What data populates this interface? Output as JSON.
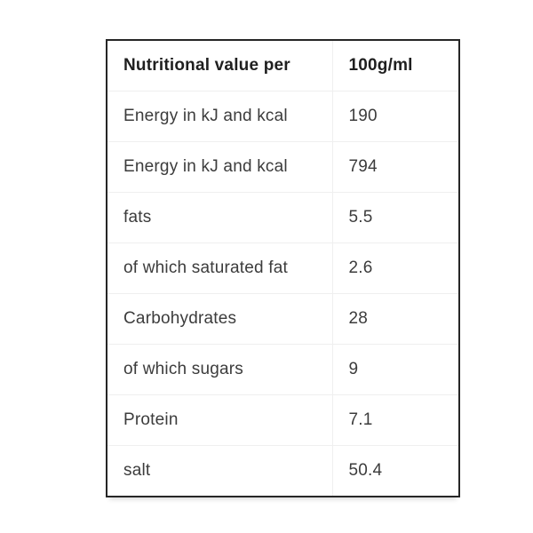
{
  "page": {
    "background": "#ffffff"
  },
  "table": {
    "header": {
      "label": "Nutritional value per",
      "value": "100g/ml"
    },
    "rows": [
      {
        "label": "Energy in kJ and kcal",
        "value": "190"
      },
      {
        "label": "Energy in kJ and kcal",
        "value": "794"
      },
      {
        "label": "fats",
        "value": "5.5"
      },
      {
        "label": "of which saturated fat",
        "value": "2.6"
      },
      {
        "label": "Carbohydrates",
        "value": "28"
      },
      {
        "label": "of which sugars",
        "value": "9"
      },
      {
        "label": "Protein",
        "value": "7.1"
      },
      {
        "label": "salt",
        "value": "50.4"
      }
    ],
    "colors": {
      "outer_border": "#262626",
      "row_divider": "#efefef",
      "header_text": "#1f1f1f",
      "body_text": "#3c3c3c"
    }
  },
  "chart_data": {
    "type": "table",
    "columns": [
      "Nutritional value per",
      "100g/ml"
    ],
    "rows": [
      [
        "Energy in kJ and kcal",
        190
      ],
      [
        "Energy in kJ and kcal",
        794
      ],
      [
        "fats",
        5.5
      ],
      [
        "of which saturated fat",
        2.6
      ],
      [
        "Carbohydrates",
        28
      ],
      [
        "of which sugars",
        9
      ],
      [
        "Protein",
        7.1
      ],
      [
        "salt",
        50.4
      ]
    ]
  }
}
